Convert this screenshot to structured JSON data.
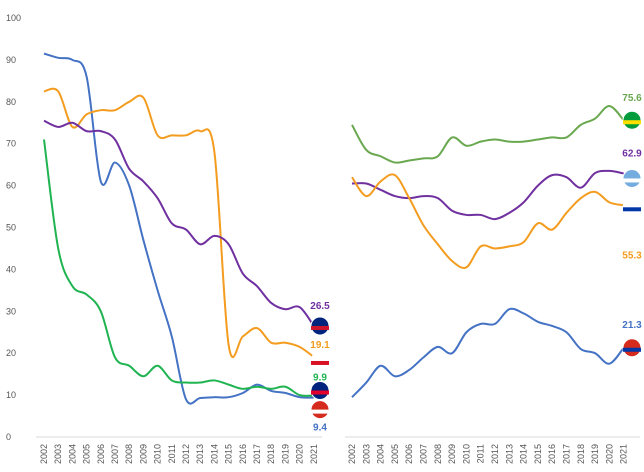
{
  "chart_data": [
    {
      "type": "line",
      "categories": [
        "2002",
        "2003",
        "2004",
        "2005",
        "2006",
        "2007",
        "2008",
        "2009",
        "2010",
        "2011",
        "2012",
        "2013",
        "2014",
        "2015",
        "2016",
        "2017",
        "2018",
        "2019",
        "2020",
        "2021"
      ],
      "ylim": [
        0,
        100
      ],
      "yticks": [
        0,
        10,
        20,
        30,
        40,
        50,
        60,
        70,
        80,
        90,
        100
      ],
      "series": [
        {
          "color": "#4472c4",
          "values": [
            91.5,
            90.5,
            90,
            86,
            61,
            65.5,
            60,
            47,
            35,
            24,
            9,
            9.3,
            9.5,
            9.5,
            10.5,
            12.5,
            11,
            10.5,
            9.5,
            9.4
          ]
        },
        {
          "color": "#f39c1f",
          "values": [
            82.5,
            82.5,
            74,
            77,
            78,
            78,
            80,
            81,
            72,
            72,
            72,
            73,
            68,
            22,
            24,
            26,
            22.5,
            22.5,
            21.5,
            19.1
          ]
        },
        {
          "color": "#7030a0",
          "values": [
            75.5,
            74,
            75,
            73,
            73,
            71,
            64,
            61,
            57,
            51,
            49.5,
            46,
            48,
            46,
            39,
            36,
            32,
            30.5,
            31,
            26.5
          ]
        },
        {
          "color": "#1fb451",
          "values": [
            71,
            45,
            36,
            34,
            30,
            19,
            17,
            14.5,
            17,
            13.5,
            13,
            13,
            13.5,
            12.5,
            11.5,
            12,
            11.5,
            12,
            10,
            9.9
          ]
        }
      ]
    },
    {
      "type": "line",
      "categories": [
        "2002",
        "2003",
        "2004",
        "2005",
        "2006",
        "2007",
        "2008",
        "2009",
        "2010",
        "2011",
        "2012",
        "2013",
        "2014",
        "2015",
        "2016",
        "2017",
        "2018",
        "2019",
        "2020",
        "2021"
      ],
      "ylim": [
        0,
        100
      ],
      "series": [
        {
          "color": "#6aa84f",
          "values": [
            74.5,
            68.5,
            67,
            65.5,
            66,
            66.5,
            67,
            71.5,
            69.5,
            70.5,
            71,
            70.5,
            70.5,
            71,
            71.5,
            71.5,
            74.5,
            76,
            79,
            75.6
          ]
        },
        {
          "color": "#7030a0",
          "values": [
            60.5,
            60.5,
            59,
            57.5,
            57,
            57.5,
            57,
            54,
            53,
            53,
            52,
            53.5,
            56,
            60,
            62.5,
            62,
            59.5,
            63,
            63.5,
            62.9
          ]
        },
        {
          "color": "#f39c1f",
          "values": [
            62,
            57.5,
            61,
            62.5,
            57,
            50.5,
            46,
            42,
            40.5,
            45.5,
            45,
            45.5,
            46.5,
            51,
            49.5,
            53.5,
            57,
            58.5,
            56,
            55.3
          ]
        },
        {
          "color": "#4472c4",
          "values": [
            9.5,
            13,
            17,
            14.5,
            16,
            19,
            21.5,
            20,
            25,
            27,
            27,
            30.5,
            29.5,
            27.5,
            26.5,
            25,
            21,
            20,
            17.5,
            21.3
          ]
        }
      ]
    }
  ]
}
